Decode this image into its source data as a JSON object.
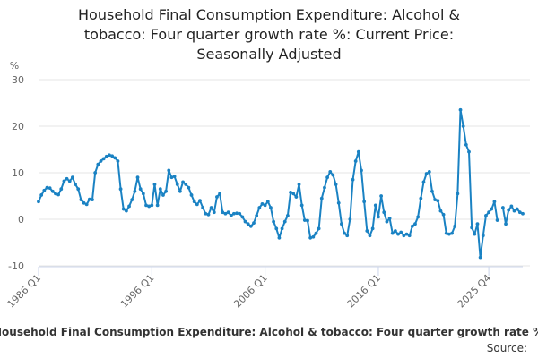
{
  "chart_data": {
    "type": "line",
    "title_lines": [
      "Household Final Consumption Expenditure: Alcohol &",
      "tobacco: Four quarter growth rate %: Current Price:",
      "Seasonally Adjusted"
    ],
    "ylabel": "%",
    "ylim": [
      -10,
      30
    ],
    "yticks": [
      "30",
      "20",
      "10",
      "0",
      "-10"
    ],
    "xticks": [
      "1986 Q1",
      "1996 Q1",
      "2006 Q1",
      "2016 Q1",
      "2025 Q4"
    ],
    "x_start": "1986 Q1",
    "x_end": "2025 Q4",
    "grid": true,
    "legend": "Household Final Consumption Expenditure: Alcohol & tobacco: Four quarter growth rate %: Current Price: Seasonally Adjusted",
    "source_label": "Source:",
    "colors": {
      "line": "#1a82c3",
      "grid": "#e6e6e6",
      "axis": "#ccd6eb"
    },
    "series": [
      {
        "values": [
          3.8,
          5.2,
          6.2,
          6.8,
          6.7,
          6.0,
          5.5,
          5.3,
          6.5,
          8.2,
          8.7,
          8.2,
          9.0,
          7.5,
          6.5,
          4.2,
          3.5,
          3.2,
          4.3,
          4.2,
          10.0,
          11.8,
          12.5,
          13.0,
          13.5,
          13.8,
          13.6,
          13.2,
          12.5,
          6.5,
          2.2,
          1.8,
          2.8,
          4.2,
          6.0,
          9.0,
          6.5,
          5.5,
          3.0,
          2.8,
          3.0,
          7.5,
          3.0,
          6.5,
          5.2,
          6.0,
          10.5,
          9.0,
          9.2,
          7.5,
          6.0,
          8.0,
          7.5,
          6.8,
          5.2,
          3.8,
          3.2,
          4.0,
          2.5,
          1.2,
          1.0,
          2.5,
          1.5,
          4.8,
          5.5,
          1.5,
          1.2,
          1.5,
          0.8,
          1.2,
          1.3,
          1.2,
          0.5,
          -0.5,
          -1.0,
          -1.5,
          -0.8,
          0.8,
          2.5,
          3.3,
          3.0,
          3.8,
          2.5,
          -0.5,
          -2.0,
          -4.0,
          -2.0,
          -0.5,
          0.8,
          5.8,
          5.5,
          4.8,
          7.5,
          3.0,
          -0.2,
          -0.3,
          -4.0,
          -3.8,
          -3.0,
          -2.0,
          4.5,
          6.8,
          9.0,
          10.2,
          9.5,
          7.5,
          3.5,
          -1.0,
          -3.0,
          -3.5,
          0.0,
          8.5,
          12.5,
          14.5,
          10.5,
          3.8,
          -2.5,
          -3.5,
          -2.0,
          3.0,
          0.5,
          5.0,
          1.5,
          -0.5,
          0.2,
          -3.0,
          -2.5,
          -3.2,
          -2.8,
          -3.5,
          -3.2,
          -3.5,
          -1.5,
          -1.0,
          0.5,
          4.5,
          8.0,
          9.8,
          10.2,
          6.0,
          4.2,
          4.0,
          1.8,
          1.0,
          -3.0,
          -3.2,
          -3.0,
          -1.5,
          5.5,
          23.5,
          20.0,
          16.0,
          14.5,
          -1.8,
          -3.2,
          -1.0,
          -8.2,
          -3.5,
          0.8,
          1.5,
          2.2,
          3.8,
          -0.2,
          null,
          2.5,
          -1.0,
          2.0,
          2.8,
          1.8,
          2.2,
          1.5,
          1.2
        ]
      }
    ]
  }
}
